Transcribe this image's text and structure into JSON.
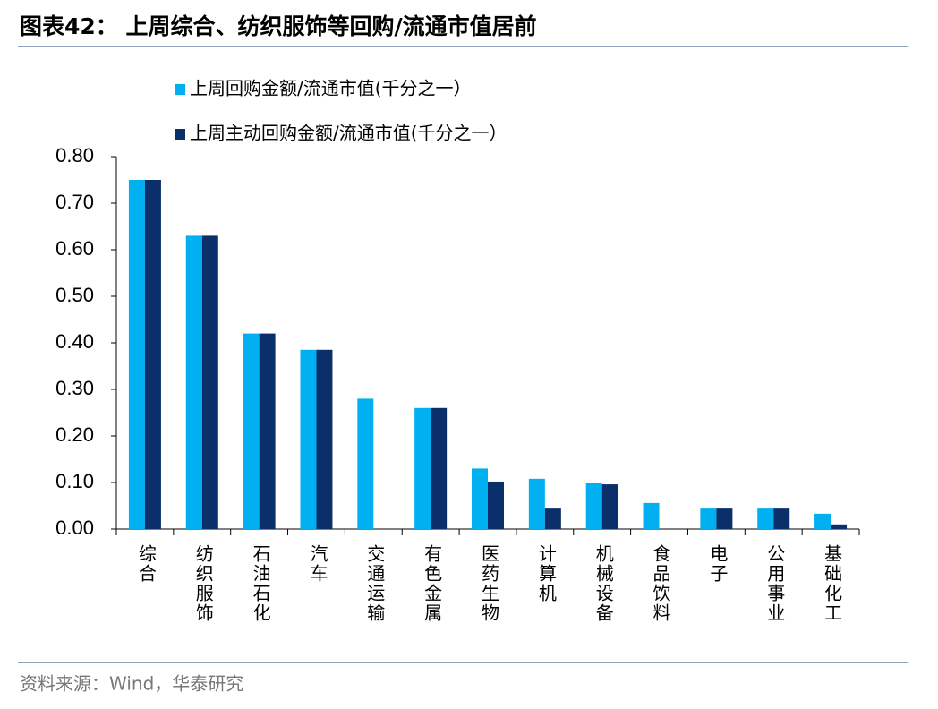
{
  "header": {
    "title": "图表42： 上周综合、纺织服饰等回购/流通市值居前"
  },
  "chart_data": {
    "type": "bar",
    "categories": [
      "综合",
      "纺织服饰",
      "石油石化",
      "汽车",
      "交通运输",
      "有色金属",
      "医药生物",
      "计算机",
      "机械设备",
      "食品饮料",
      "电子",
      "公用事业",
      "基础化工"
    ],
    "series": [
      {
        "name": "上周回购金额/流通市值(千分之一）",
        "color": "#00b0f0",
        "values": [
          0.75,
          0.63,
          0.42,
          0.385,
          0.28,
          0.26,
          0.13,
          0.108,
          0.1,
          0.056,
          0.044,
          0.044,
          0.033
        ]
      },
      {
        "name": "上周主动回购金额/流通市值(千分之一）",
        "color": "#0b2f6b",
        "values": [
          0.75,
          0.63,
          0.42,
          0.385,
          0,
          0.26,
          0.102,
          0.044,
          0.096,
          0,
          0.044,
          0.044,
          0.01
        ]
      }
    ],
    "ylim": [
      0,
      0.8
    ],
    "yticks": [
      {
        "value": 0,
        "label": "0.00"
      },
      {
        "value": 0.1,
        "label": "0.10"
      },
      {
        "value": 0.2,
        "label": "0.20"
      },
      {
        "value": 0.3,
        "label": "0.30"
      },
      {
        "value": 0.4,
        "label": "0.40"
      },
      {
        "value": 0.5,
        "label": "0.50"
      },
      {
        "value": 0.6,
        "label": "0.60"
      },
      {
        "value": 0.7,
        "label": "0.70"
      },
      {
        "value": 0.8,
        "label": "0.80"
      }
    ],
    "grid": false
  },
  "footer": {
    "source": "资料来源：Wind，华泰研究"
  }
}
